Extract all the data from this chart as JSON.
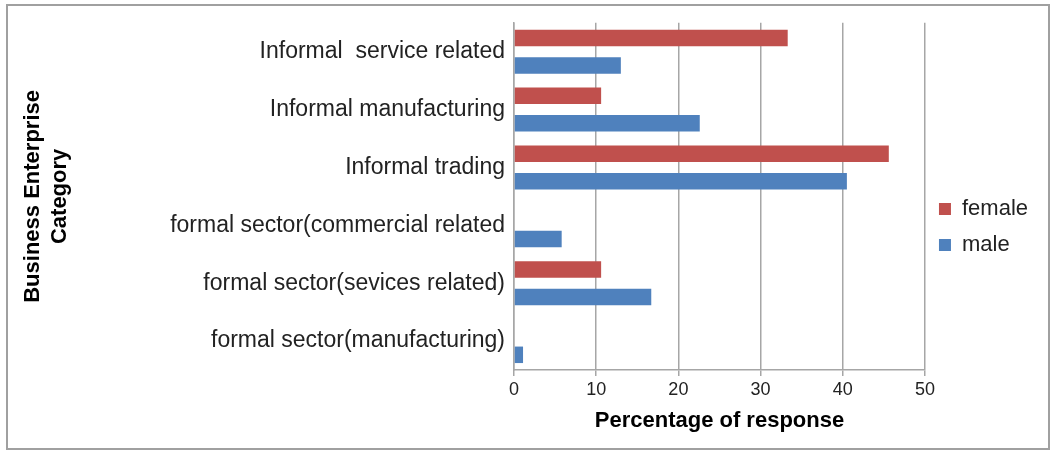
{
  "chart_data": {
    "type": "bar",
    "orientation": "horizontal",
    "xlabel": "Percentage of response",
    "ylabel": "Business Enterprise Category",
    "categories": [
      "Informal  service related",
      "Informal manufacturing",
      "Informal trading",
      "formal sector(commercial related",
      "formal sector(sevices related)",
      "formal sector(manufacturing)"
    ],
    "series": [
      {
        "name": "female",
        "color": "#c0504d",
        "values": [
          33.3,
          10.6,
          45.6,
          0,
          10.6,
          0
        ]
      },
      {
        "name": "male",
        "color": "#4f81bd",
        "values": [
          13.0,
          22.6,
          40.5,
          5.8,
          16.7,
          1.1
        ]
      }
    ],
    "xlim": [
      0,
      50
    ],
    "xticks": [
      0,
      10,
      20,
      30,
      40,
      50
    ],
    "grid": "x",
    "legend": "right"
  }
}
